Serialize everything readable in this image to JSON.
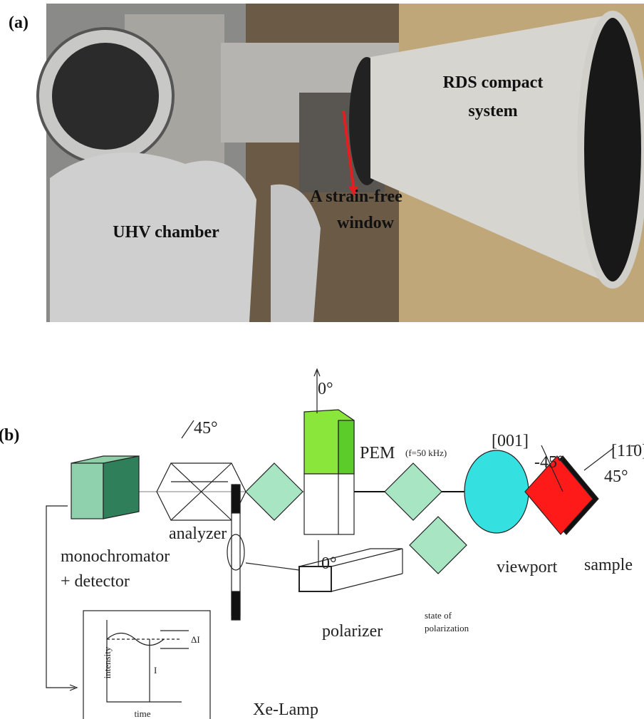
{
  "panel_a": {
    "label": "(a)",
    "rds_line1": "RDS compact",
    "rds_line2": "system",
    "window_line1": "A strain-free",
    "window_line2": "window",
    "chamber": "UHV chamber"
  },
  "panel_b": {
    "label": "(b)",
    "pem_angle": "0°",
    "pem": "PEM",
    "pem_freq": "(f=50 kHz)",
    "dir_001": "[001]",
    "angle_m45": "-45°",
    "dir_1m10": "[11̄0]",
    "angle_45_sample": "45°",
    "analyzer_angle": "45°",
    "analyzer": "analyzer",
    "mono_line1": "monochromator",
    "mono_line2": "+ detector",
    "sample": "sample",
    "viewport": "viewport",
    "polarizer_angle": "0°",
    "state_line1": "state of",
    "state_line2": "polarization",
    "polarizer": "polarizer",
    "lamp": "Xe-Lamp",
    "graph_y": "intensity",
    "graph_x": "time",
    "delta_i": "ΔI",
    "i": "I"
  }
}
